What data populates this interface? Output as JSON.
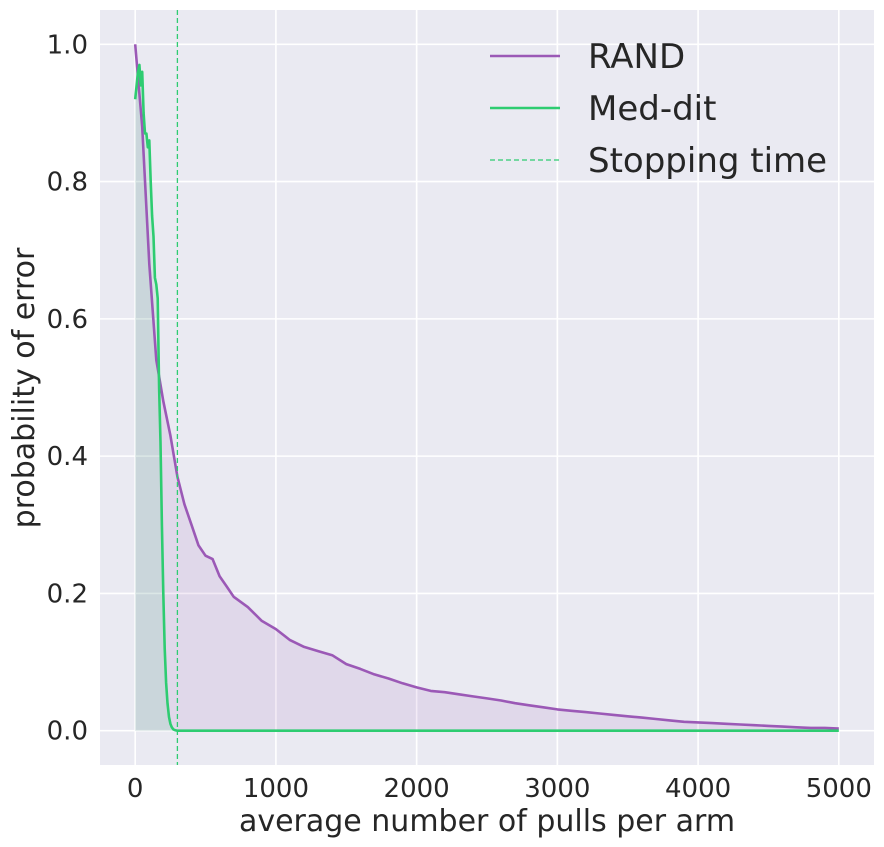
{
  "chart_data": {
    "type": "line",
    "xlabel": "average number of pulls per arm",
    "ylabel": "probability of error",
    "xlim": [
      -250,
      5250
    ],
    "ylim": [
      -0.05,
      1.05
    ],
    "xticks": [
      0,
      1000,
      2000,
      3000,
      4000,
      5000
    ],
    "xtick_labels": [
      "0",
      "1000",
      "2000",
      "3000",
      "4000",
      "5000"
    ],
    "yticks": [
      0.0,
      0.2,
      0.4,
      0.6,
      0.8,
      1.0
    ],
    "ytick_labels": [
      "0.0",
      "0.2",
      "0.4",
      "0.6",
      "0.8",
      "1.0"
    ],
    "grid": true,
    "legend_placement": "top-right",
    "series": [
      {
        "name": "RAND",
        "color": "#9b59b6",
        "fill": true,
        "x": [
          0,
          50,
          100,
          150,
          200,
          250,
          300,
          350,
          400,
          450,
          500,
          550,
          600,
          650,
          700,
          800,
          900,
          1000,
          1100,
          1200,
          1300,
          1400,
          1500,
          1600,
          1700,
          1800,
          1900,
          2000,
          2100,
          2200,
          2300,
          2400,
          2500,
          2600,
          2700,
          2800,
          2900,
          3000,
          3100,
          3200,
          3300,
          3400,
          3500,
          3600,
          3700,
          3800,
          3900,
          4000,
          4100,
          4200,
          4300,
          4400,
          4500,
          4600,
          4700,
          4800,
          4900,
          5000
        ],
        "y": [
          1.0,
          0.88,
          0.68,
          0.54,
          0.48,
          0.43,
          0.37,
          0.33,
          0.3,
          0.27,
          0.255,
          0.25,
          0.225,
          0.21,
          0.195,
          0.18,
          0.16,
          0.148,
          0.132,
          0.122,
          0.116,
          0.11,
          0.097,
          0.09,
          0.082,
          0.076,
          0.069,
          0.063,
          0.058,
          0.056,
          0.053,
          0.05,
          0.047,
          0.044,
          0.04,
          0.037,
          0.034,
          0.031,
          0.029,
          0.027,
          0.025,
          0.023,
          0.021,
          0.019,
          0.017,
          0.015,
          0.013,
          0.012,
          0.011,
          0.01,
          0.009,
          0.008,
          0.007,
          0.006,
          0.005,
          0.004,
          0.004,
          0.003
        ]
      },
      {
        "name": "Med-dit",
        "color": "#2ecc71",
        "fill": true,
        "x": [
          0,
          20,
          30,
          40,
          50,
          60,
          70,
          80,
          90,
          100,
          110,
          120,
          130,
          140,
          150,
          160,
          170,
          180,
          190,
          200,
          210,
          220,
          230,
          240,
          250,
          260,
          270,
          280,
          300,
          400,
          1000,
          2000,
          3000,
          4000,
          5000
        ],
        "y": [
          0.92,
          0.96,
          0.97,
          0.94,
          0.96,
          0.9,
          0.87,
          0.87,
          0.85,
          0.86,
          0.8,
          0.75,
          0.72,
          0.66,
          0.65,
          0.63,
          0.5,
          0.42,
          0.3,
          0.2,
          0.12,
          0.07,
          0.04,
          0.02,
          0.01,
          0.005,
          0.002,
          0.001,
          0.0,
          0.0,
          0.0,
          0.0,
          0.0,
          0.0,
          0.0
        ]
      }
    ],
    "vlines": [
      {
        "name": "Stopping time",
        "x": 300,
        "color": "#2ecc71",
        "style": "dashed"
      }
    ]
  }
}
